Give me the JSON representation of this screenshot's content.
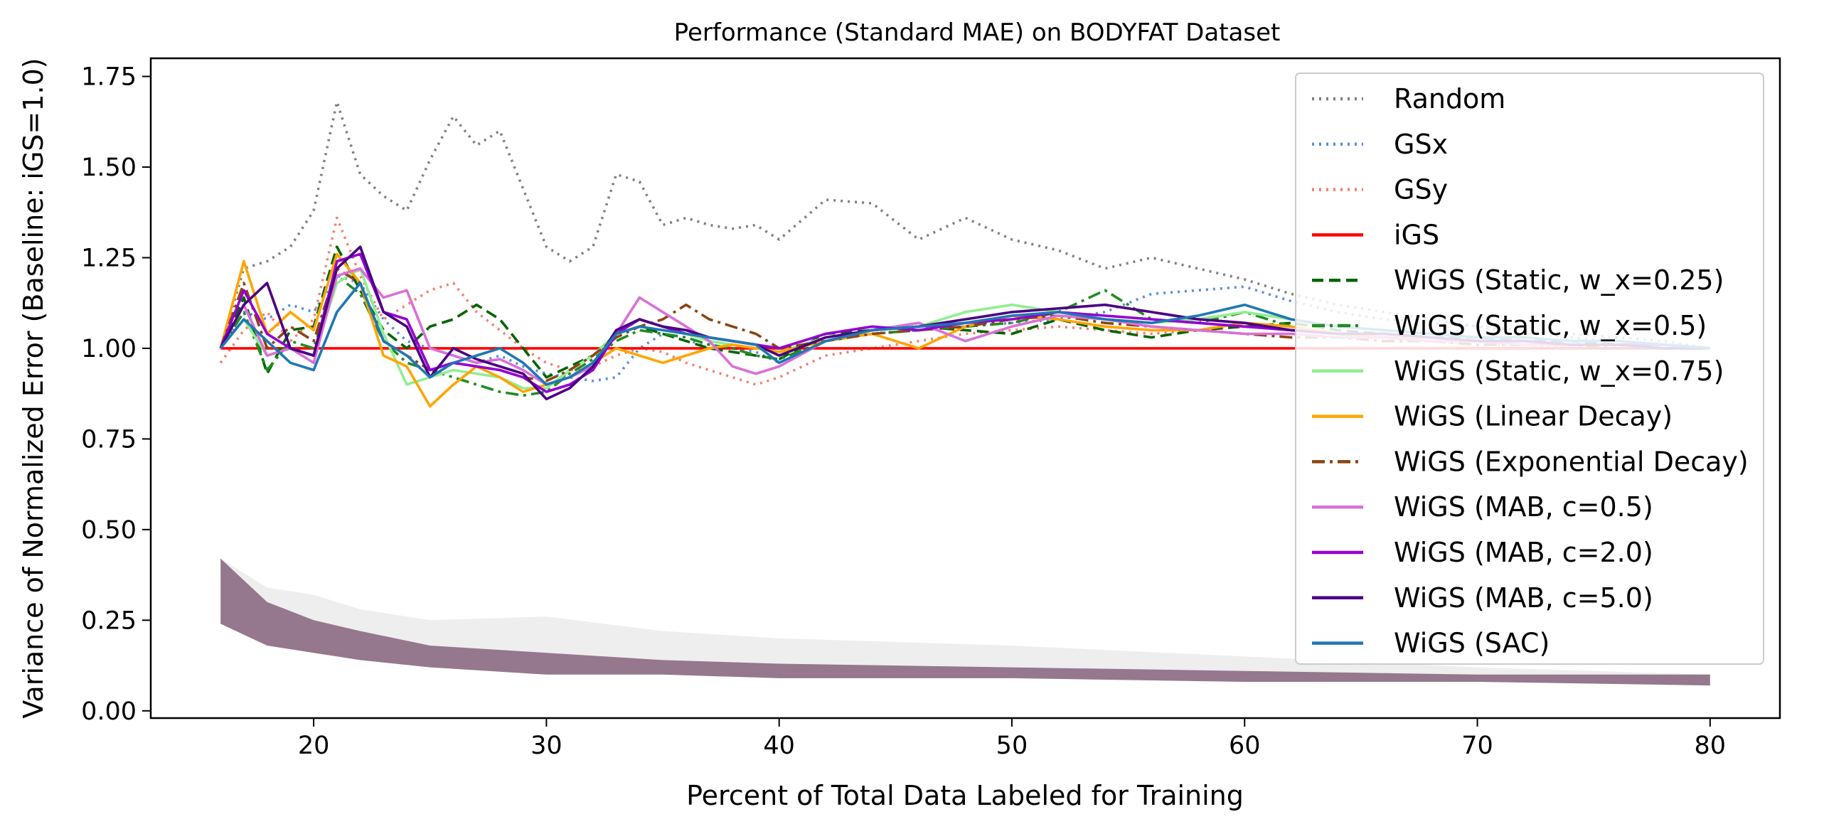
{
  "chart_data": {
    "type": "line",
    "title": "Performance (Standard MAE) on BODYFAT Dataset",
    "xlabel": "Percent of Total Data Labeled for Training",
    "ylabel": "Variance of Normalized Error (Baseline: iGS=1.0)",
    "xlim": [
      13,
      83
    ],
    "ylim": [
      -0.02,
      1.8
    ],
    "xticks": [
      "20",
      "30",
      "40",
      "50",
      "60",
      "70",
      "80"
    ],
    "xtick_values": [
      20,
      30,
      40,
      50,
      60,
      70,
      80
    ],
    "yticks": [
      "0.00",
      "0.25",
      "0.50",
      "0.75",
      "1.00",
      "1.25",
      "1.50",
      "1.75"
    ],
    "ytick_values": [
      0.0,
      0.25,
      0.5,
      0.75,
      1.0,
      1.25,
      1.5,
      1.75
    ],
    "grid": false,
    "legend_position": "upper-right",
    "x": [
      16,
      17,
      18,
      19,
      20,
      21,
      22,
      23,
      24,
      25,
      26,
      27,
      28,
      29,
      30,
      31,
      32,
      33,
      34,
      35,
      36,
      37,
      38,
      39,
      40,
      42,
      44,
      46,
      48,
      50,
      52,
      54,
      56,
      58,
      60,
      62,
      64,
      66,
      68,
      70,
      72,
      74,
      76,
      78,
      80
    ],
    "series": [
      {
        "name": "Random",
        "color": "#808080",
        "dash": "dotted",
        "values": [
          1.0,
          1.22,
          1.24,
          1.28,
          1.38,
          1.68,
          1.48,
          1.42,
          1.38,
          1.52,
          1.64,
          1.56,
          1.6,
          1.44,
          1.28,
          1.24,
          1.28,
          1.48,
          1.46,
          1.34,
          1.36,
          1.34,
          1.33,
          1.34,
          1.3,
          1.41,
          1.4,
          1.3,
          1.36,
          1.3,
          1.27,
          1.22,
          1.25,
          1.22,
          1.19,
          1.15,
          1.12,
          1.1,
          1.08,
          1.06,
          1.05,
          1.04,
          1.03,
          1.02,
          1.0
        ]
      },
      {
        "name": "GSx",
        "color": "#5a8fdb",
        "dash": "dotted",
        "values": [
          1.0,
          1.1,
          1.08,
          1.12,
          1.1,
          1.2,
          1.18,
          1.08,
          1.02,
          1.0,
          0.98,
          0.96,
          0.98,
          0.95,
          0.93,
          0.92,
          0.91,
          0.92,
          1.0,
          1.04,
          1.02,
          1.01,
          1.0,
          0.99,
          0.96,
          1.02,
          1.04,
          1.05,
          1.06,
          1.07,
          1.08,
          1.1,
          1.15,
          1.16,
          1.17,
          1.13,
          1.1,
          1.08,
          1.07,
          1.06,
          1.04,
          1.03,
          1.02,
          1.01,
          1.0
        ]
      },
      {
        "name": "GSy",
        "color": "#f28072",
        "dash": "dotted",
        "values": [
          0.96,
          1.05,
          1.1,
          1.02,
          1.08,
          1.36,
          1.2,
          1.08,
          1.12,
          1.16,
          1.18,
          1.1,
          1.05,
          1.0,
          0.96,
          0.94,
          0.95,
          0.98,
          1.0,
          0.99,
          0.96,
          0.94,
          0.92,
          0.9,
          0.92,
          0.98,
          1.0,
          1.02,
          1.04,
          1.05,
          1.06,
          1.05,
          1.04,
          1.05,
          1.06,
          1.05,
          1.04,
          1.03,
          1.02,
          1.01,
          1.01,
          1.0,
          1.0,
          1.0,
          1.0
        ]
      },
      {
        "name": "iGS",
        "color": "#ff0000",
        "dash": "solid",
        "values": [
          1.0,
          1.0,
          1.0,
          1.0,
          1.0,
          1.0,
          1.0,
          1.0,
          1.0,
          1.0,
          1.0,
          1.0,
          1.0,
          1.0,
          1.0,
          1.0,
          1.0,
          1.0,
          1.0,
          1.0,
          1.0,
          1.0,
          1.0,
          1.0,
          1.0,
          1.0,
          1.0,
          1.0,
          1.0,
          1.0,
          1.0,
          1.0,
          1.0,
          1.0,
          1.0,
          1.0,
          1.0,
          1.0,
          1.0,
          1.0,
          1.0,
          1.0,
          1.0,
          1.0,
          1.0
        ]
      },
      {
        "name": "WiGS (Static, w_x=0.25)",
        "color": "#006400",
        "dash": "dashed",
        "values": [
          1.0,
          1.14,
          0.93,
          1.05,
          1.06,
          1.28,
          1.16,
          1.05,
          1.0,
          1.06,
          1.08,
          1.12,
          1.08,
          1.0,
          0.92,
          0.95,
          0.98,
          1.04,
          1.06,
          1.04,
          1.02,
          1.0,
          0.99,
          0.98,
          0.97,
          1.04,
          1.05,
          1.06,
          1.05,
          1.04,
          1.08,
          1.05,
          1.03,
          1.05,
          1.06,
          1.07,
          1.05,
          1.04,
          1.03,
          1.03,
          1.02,
          1.02,
          1.01,
          1.01,
          1.0
        ]
      },
      {
        "name": "WiGS (Static, w_x=0.5)",
        "color": "#228b22",
        "dash": "dashdot",
        "values": [
          1.0,
          1.1,
          0.94,
          1.02,
          1.0,
          1.2,
          1.15,
          1.02,
          0.96,
          0.94,
          0.92,
          0.9,
          0.88,
          0.87,
          0.88,
          0.93,
          0.97,
          1.02,
          1.05,
          1.04,
          1.03,
          1.01,
          1.0,
          0.98,
          0.97,
          1.02,
          1.04,
          1.05,
          1.06,
          1.07,
          1.1,
          1.16,
          1.08,
          1.07,
          1.1,
          1.06,
          1.04,
          1.03,
          1.03,
          1.02,
          1.02,
          1.01,
          1.01,
          1.01,
          1.0
        ]
      },
      {
        "name": "WiGS (Static, w_x=0.75)",
        "color": "#90ee90",
        "dash": "solid",
        "values": [
          1.0,
          1.08,
          0.98,
          1.0,
          0.98,
          1.18,
          1.22,
          1.04,
          0.9,
          0.92,
          0.94,
          0.93,
          0.92,
          0.89,
          0.89,
          0.94,
          0.98,
          1.04,
          1.08,
          1.06,
          1.04,
          1.02,
          1.01,
          1.0,
          0.99,
          1.03,
          1.05,
          1.06,
          1.1,
          1.12,
          1.1,
          1.08,
          1.07,
          1.08,
          1.1,
          1.08,
          1.06,
          1.05,
          1.04,
          1.03,
          1.03,
          1.02,
          1.02,
          1.01,
          1.0
        ]
      },
      {
        "name": "WiGS (Linear Decay)",
        "color": "#ffa500",
        "dash": "solid",
        "values": [
          1.0,
          1.24,
          1.04,
          1.1,
          1.05,
          1.26,
          1.18,
          0.98,
          0.95,
          0.84,
          0.9,
          0.95,
          0.92,
          0.88,
          0.9,
          0.92,
          0.96,
          1.0,
          0.98,
          0.96,
          0.98,
          1.0,
          1.01,
          1.0,
          0.99,
          1.02,
          1.04,
          1.0,
          1.06,
          1.09,
          1.08,
          1.06,
          1.05,
          1.05,
          1.07,
          1.06,
          1.04,
          1.03,
          1.03,
          1.02,
          1.02,
          1.01,
          1.01,
          1.01,
          1.0
        ]
      },
      {
        "name": "WiGS (Exponential Decay)",
        "color": "#8b4513",
        "dash": "dashdot",
        "values": [
          1.0,
          1.18,
          1.0,
          1.06,
          1.02,
          1.22,
          1.18,
          1.02,
          0.98,
          0.94,
          0.96,
          0.95,
          0.94,
          0.92,
          0.91,
          0.94,
          0.98,
          1.03,
          1.06,
          1.08,
          1.12,
          1.08,
          1.06,
          1.04,
          1.0,
          1.02,
          1.04,
          1.05,
          1.06,
          1.08,
          1.09,
          1.07,
          1.06,
          1.05,
          1.04,
          1.03,
          1.03,
          1.02,
          1.02,
          1.01,
          1.01,
          1.01,
          1.0,
          1.0,
          1.0
        ]
      },
      {
        "name": "WiGS (MAB, c=0.5)",
        "color": "#da70d6",
        "dash": "solid",
        "values": [
          1.0,
          1.12,
          0.98,
          1.0,
          0.96,
          1.2,
          1.22,
          1.14,
          1.16,
          1.0,
          0.98,
          0.96,
          0.97,
          0.94,
          0.9,
          0.92,
          0.95,
          1.04,
          1.14,
          1.1,
          1.06,
          1.02,
          0.95,
          0.93,
          0.95,
          1.02,
          1.05,
          1.07,
          1.02,
          1.06,
          1.09,
          1.08,
          1.06,
          1.05,
          1.04,
          1.04,
          1.03,
          1.03,
          1.02,
          1.02,
          1.01,
          1.01,
          1.01,
          1.0,
          1.0
        ]
      },
      {
        "name": "WiGS (MAB, c=2.0)",
        "color": "#9400d3",
        "dash": "solid",
        "values": [
          1.0,
          1.16,
          1.04,
          1.0,
          0.98,
          1.24,
          1.26,
          1.1,
          1.08,
          0.94,
          0.96,
          0.95,
          0.94,
          0.92,
          0.88,
          0.9,
          0.94,
          1.04,
          1.08,
          1.06,
          1.04,
          1.03,
          1.02,
          1.01,
          1.0,
          1.04,
          1.06,
          1.05,
          1.07,
          1.08,
          1.1,
          1.09,
          1.08,
          1.07,
          1.06,
          1.05,
          1.04,
          1.04,
          1.03,
          1.02,
          1.02,
          1.01,
          1.01,
          1.01,
          1.0
        ]
      },
      {
        "name": "WiGS (MAB, c=5.0)",
        "color": "#4b0082",
        "dash": "solid",
        "values": [
          1.0,
          1.12,
          1.18,
          1.0,
          0.98,
          1.22,
          1.28,
          1.1,
          1.06,
          0.92,
          1.0,
          0.97,
          0.95,
          0.93,
          0.86,
          0.89,
          0.95,
          1.05,
          1.08,
          1.06,
          1.05,
          1.03,
          1.02,
          1.01,
          0.98,
          1.03,
          1.05,
          1.06,
          1.08,
          1.1,
          1.11,
          1.12,
          1.1,
          1.08,
          1.07,
          1.05,
          1.04,
          1.04,
          1.03,
          1.02,
          1.02,
          1.01,
          1.01,
          1.0,
          1.0
        ]
      },
      {
        "name": "WiGS (SAC)",
        "color": "#1f77b4",
        "dash": "solid",
        "values": [
          1.0,
          1.08,
          1.02,
          0.96,
          0.94,
          1.1,
          1.18,
          1.02,
          0.98,
          0.92,
          0.96,
          0.98,
          1.0,
          0.96,
          0.9,
          0.92,
          0.96,
          1.04,
          1.06,
          1.05,
          1.04,
          1.03,
          1.02,
          1.01,
          0.96,
          1.02,
          1.05,
          1.06,
          1.07,
          1.09,
          1.1,
          1.08,
          1.07,
          1.09,
          1.12,
          1.08,
          1.06,
          1.05,
          1.04,
          1.03,
          1.03,
          1.02,
          1.02,
          1.01,
          1.0
        ]
      }
    ],
    "variance_band": {
      "x": [
        16,
        18,
        20,
        22,
        25,
        30,
        35,
        40,
        50,
        60,
        70,
        80
      ],
      "lower": [
        0.24,
        0.18,
        0.16,
        0.14,
        0.12,
        0.1,
        0.1,
        0.09,
        0.09,
        0.08,
        0.08,
        0.07
      ],
      "upper": [
        0.42,
        0.3,
        0.25,
        0.22,
        0.18,
        0.16,
        0.14,
        0.13,
        0.12,
        0.11,
        0.1,
        0.1
      ],
      "gray_upper": [
        0.42,
        0.34,
        0.32,
        0.28,
        0.25,
        0.26,
        0.22,
        0.2,
        0.18,
        0.15,
        0.12,
        0.1
      ],
      "fill_color": "#8b6a82",
      "gray_color": "#d9d9d9"
    }
  }
}
